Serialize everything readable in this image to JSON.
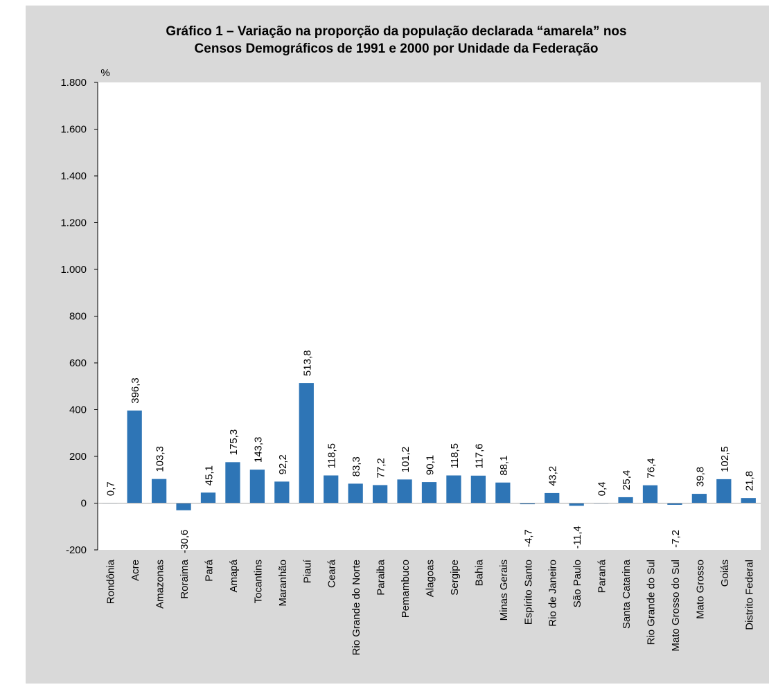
{
  "chart_data": {
    "type": "bar",
    "title_line1": "Gráfico 1 – Variação na proporção da população declarada “amarela” nos",
    "title_line2": "Censos Demográficos de 1991 e 2000 por Unidade da Federação",
    "yunit": "%",
    "xlabel": "",
    "ylim": [
      -200,
      1800
    ],
    "yticks": [
      -200,
      0,
      200,
      400,
      600,
      800,
      1000,
      1200,
      1400,
      1600,
      1800
    ],
    "ytick_labels": [
      "-200",
      "0",
      "200",
      "400",
      "600",
      "800",
      "1.000",
      "1.200",
      "1.400",
      "1.600",
      "1.800"
    ],
    "grid": false,
    "bar_color": "#2e75b6",
    "categories": [
      "Rondônia",
      "Acre",
      "Amazonas",
      "Roraima",
      "Pará",
      "Amapá",
      "Tocantins",
      "Maranhão",
      "Piauí",
      "Ceará",
      "Rio Grande do Norte",
      "Paraiba",
      "Pemambuco",
      "Alagoas",
      "Sergipe",
      "Bahia",
      "Minas Gerais",
      "Espírito Santo",
      "Rio de Janeiro",
      "São Paulo",
      "Paraná",
      "Santa Catarina",
      "Rio Grande do Sul",
      "Mato Grosso do Sul",
      "Mato Grosso",
      "Goiás",
      "Distrito Federal"
    ],
    "values": [
      0.7,
      396.3,
      103.3,
      -30.6,
      45.1,
      175.3,
      143.3,
      92.2,
      513.8,
      118.5,
      83.3,
      77.2,
      101.2,
      90.1,
      118.5,
      117.6,
      88.1,
      -4.7,
      43.2,
      -11.4,
      0.4,
      25.4,
      76.4,
      -7.2,
      39.8,
      102.5,
      21.8
    ],
    "value_labels": [
      "0,7",
      "396,3",
      "103,3",
      "-30,6",
      "45,1",
      "175,3",
      "143,3",
      "92,2",
      "513,8",
      "118,5",
      "83,3",
      "77,2",
      "101,2",
      "90,1",
      "118,5",
      "117,6",
      "88,1",
      "-4,7",
      "43,2",
      "-11,4",
      "0,4",
      "25,4",
      "76,4",
      "-7,2",
      "39,8",
      "102,5",
      "21,8"
    ]
  }
}
